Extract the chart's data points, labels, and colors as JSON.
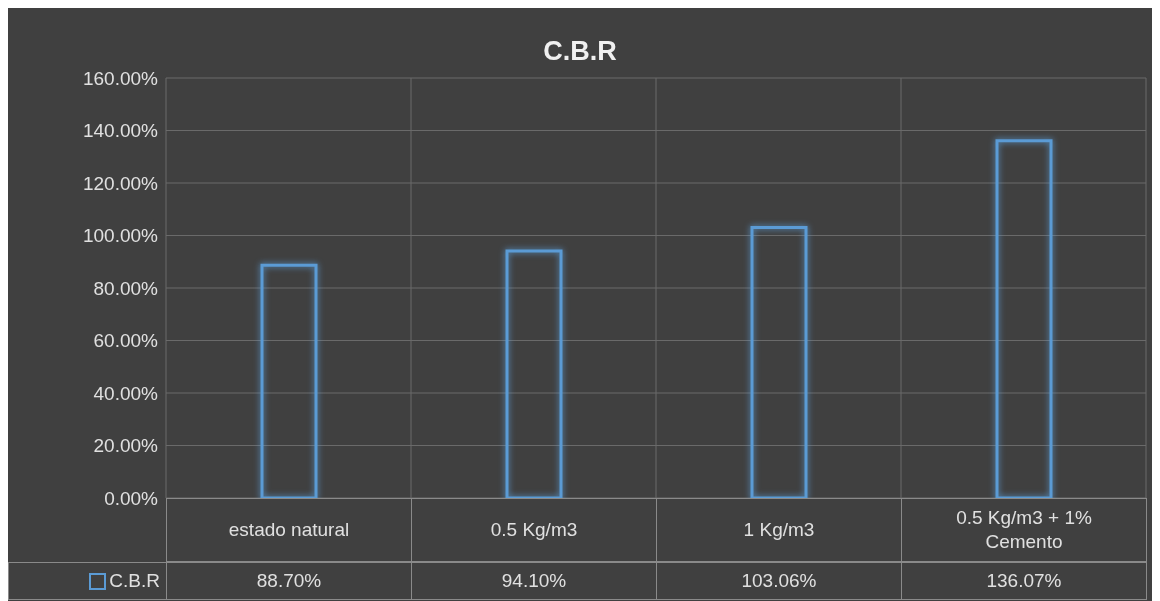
{
  "chart_data": {
    "type": "bar",
    "title": "C.B.R",
    "categories": [
      "estado natural",
      "0.5 Kg/m3",
      "1 Kg/m3",
      "0.5 Kg/m3 + 1% Cemento"
    ],
    "series": [
      {
        "name": "C.B.R",
        "color": "#5b9bd5",
        "values": [
          88.7,
          94.1,
          103.06,
          136.07
        ],
        "value_labels": [
          "88.70%",
          "94.10%",
          "103.06%",
          "136.07%"
        ]
      }
    ],
    "ylim": [
      0,
      160
    ],
    "yticks": [
      {
        "value": 0,
        "label": "0.00%"
      },
      {
        "value": 20,
        "label": "20.00%"
      },
      {
        "value": 40,
        "label": "40.00%"
      },
      {
        "value": 60,
        "label": "60.00%"
      },
      {
        "value": 80,
        "label": "80.00%"
      },
      {
        "value": 100,
        "label": "100.00%"
      },
      {
        "value": 120,
        "label": "120.00%"
      },
      {
        "value": 140,
        "label": "140.00%"
      },
      {
        "value": 160,
        "label": "160.00%"
      }
    ],
    "grid": true
  }
}
